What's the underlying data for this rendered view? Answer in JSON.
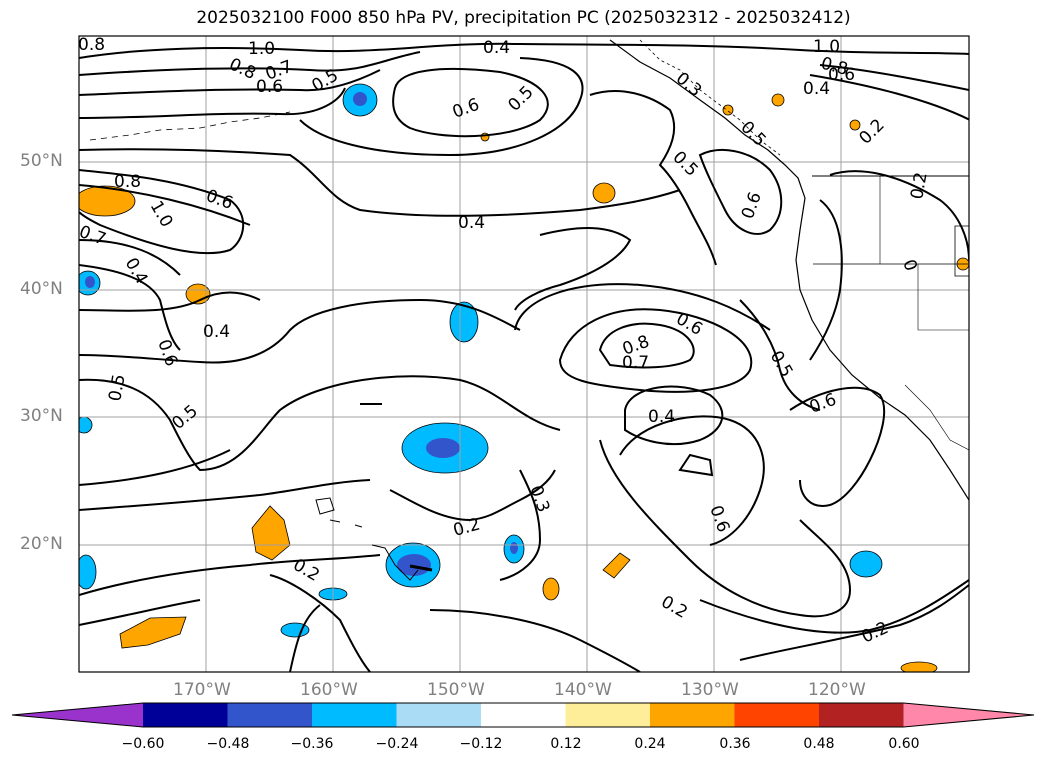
{
  "title": "2025032100 F000 850 hPa PV, precipitation PC (2025032312 - 2025032412)",
  "map": {
    "lat_labels": [
      "50°N",
      "40°N",
      "30°N",
      "20°N"
    ],
    "lon_labels": [
      "170°W",
      "160°W",
      "150°W",
      "140°W",
      "130°W",
      "120°W"
    ],
    "contour_labels": [
      "0.8",
      "1.0",
      "0.8",
      "0.7",
      "0.6",
      "0.5",
      "0.4",
      "0.6",
      "0.5",
      "0.3",
      "1.0",
      "0.8",
      "0.6",
      "0.4",
      "0.2",
      "0.8",
      "1.0",
      "0.6",
      "0.7",
      "0.4",
      "0.4",
      "0.5",
      "0.6",
      "0.5",
      "0.2",
      "0.6",
      "0.4",
      "0.6",
      "0.8",
      "0.7",
      "0.5",
      "0.5",
      "0.6",
      "0.4",
      "0.3",
      "0.2",
      "0.6",
      "0.2",
      "0.2",
      "0.2"
    ]
  },
  "colorbar": {
    "ticks": [
      "−0.60",
      "−0.48",
      "−0.36",
      "−0.24",
      "−0.12",
      "0.12",
      "0.24",
      "0.36",
      "0.48",
      "0.60"
    ],
    "colors": [
      "#9933cc",
      "#000099",
      "#3355cc",
      "#00bbff",
      "#aaddf5",
      "#ffffff",
      "#ffee99",
      "#ffa500",
      "#ff4400",
      "#b22222",
      "#ff88aa"
    ]
  }
}
